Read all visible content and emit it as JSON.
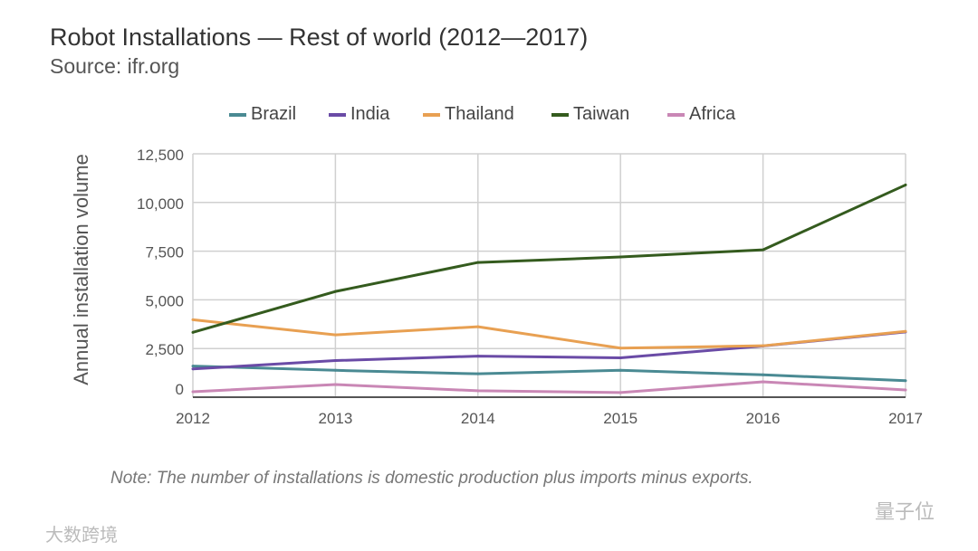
{
  "chart_data": {
    "type": "line",
    "title": "Robot Installations — Rest of world (2012—2017)",
    "subtitle": "Source: ifr.org",
    "xlabel": "",
    "ylabel": "Annual installation volume",
    "x": [
      "2012",
      "2013",
      "2014",
      "2015",
      "2016",
      "2017"
    ],
    "ylim": [
      0,
      12500
    ],
    "yticks": [
      0,
      2500,
      5000,
      7500,
      10000,
      12500
    ],
    "ytick_labels": [
      "0",
      "2,500",
      "5,000",
      "7,500",
      "10,000",
      "12,500"
    ],
    "grid": true,
    "legend_position": "top",
    "series": [
      {
        "name": "Brazil",
        "color": "#4a8a93",
        "values": [
          1600,
          1380,
          1200,
          1380,
          1150,
          850
        ]
      },
      {
        "name": "India",
        "color": "#6a4ba6",
        "values": [
          1450,
          1880,
          2110,
          2020,
          2630,
          3350
        ]
      },
      {
        "name": "Thailand",
        "color": "#e8a052",
        "values": [
          3980,
          3200,
          3620,
          2520,
          2640,
          3380
        ]
      },
      {
        "name": "Taiwan",
        "color": "#345b1e",
        "values": [
          3330,
          5430,
          6920,
          7200,
          7570,
          10900
        ]
      },
      {
        "name": "Africa",
        "color": "#c987b5",
        "values": [
          280,
          650,
          330,
          240,
          790,
          370
        ]
      }
    ],
    "note": "Note: The number of installations is domestic production plus imports minus exports."
  },
  "watermarks": {
    "right": "量子位",
    "left": "大数跨境"
  }
}
